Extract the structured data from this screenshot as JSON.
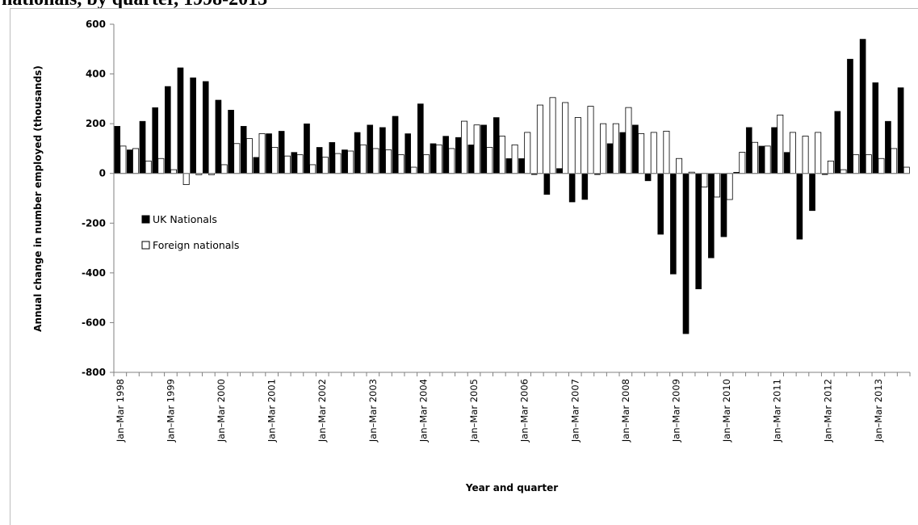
{
  "title": "nationals, by quarter, 1998-2013",
  "chart_data": {
    "type": "bar",
    "ylabel": "Annual change in number employed (thousands)",
    "xlabel": "Year and quarter",
    "ylim": [
      -800,
      600
    ],
    "yticks": [
      600,
      400,
      200,
      0,
      -200,
      -400,
      -600,
      -800
    ],
    "grid": false,
    "legend_position": "middle-left",
    "categories": [
      "Jan–Mar 1998",
      "",
      "",
      "",
      "Jan–Mar 1999",
      "",
      "",
      "",
      "Jan–Mar 2000",
      "",
      "",
      "",
      "Jan–Mar 2001",
      "",
      "",
      "",
      "Jan–Mar 2002",
      "",
      "",
      "",
      "Jan–Mar 2003",
      "",
      "",
      "",
      "Jan–Mar 2004",
      "",
      "",
      "",
      "Jan–Mar 2005",
      "",
      "",
      "",
      "Jan–Mar 2006",
      "",
      "",
      "",
      "Jan–Mar 2007",
      "",
      "",
      "",
      "Jan–Mar 2008",
      "",
      "",
      "",
      "Jan–Mar 2009",
      "",
      "",
      "",
      "Jan–Mar 2010",
      "",
      "",
      "",
      "Jan–Mar 2011",
      "",
      "",
      "",
      "Jan–Mar 2012",
      "",
      "",
      "",
      "Jan–Mar 2013",
      "",
      ""
    ],
    "series": [
      {
        "name": "UK Nationals",
        "color": "#000000",
        "values": [
          190,
          95,
          210,
          265,
          350,
          425,
          385,
          370,
          295,
          255,
          190,
          65,
          160,
          170,
          85,
          200,
          105,
          125,
          95,
          165,
          195,
          185,
          230,
          160,
          280,
          120,
          150,
          145,
          115,
          195,
          225,
          60,
          60,
          -5,
          -85,
          20,
          -115,
          -105,
          -5,
          120,
          165,
          195,
          -30,
          -245,
          -405,
          -645,
          -465,
          -340,
          -255,
          5,
          185,
          110,
          185,
          85,
          -265,
          -150,
          -5,
          250,
          460,
          540,
          365,
          210,
          345
        ]
      },
      {
        "name": "Foreign nationals",
        "color": "#ffffff",
        "values": [
          110,
          100,
          50,
          60,
          15,
          -45,
          -5,
          -5,
          35,
          120,
          140,
          160,
          105,
          70,
          75,
          35,
          65,
          80,
          90,
          115,
          100,
          95,
          75,
          25,
          75,
          115,
          100,
          210,
          195,
          105,
          150,
          115,
          165,
          275,
          305,
          285,
          225,
          270,
          200,
          200,
          265,
          160,
          165,
          170,
          60,
          5,
          -55,
          -95,
          -105,
          85,
          125,
          110,
          235,
          165,
          150,
          165,
          50,
          15,
          75,
          75,
          60,
          100,
          25
        ]
      }
    ]
  }
}
